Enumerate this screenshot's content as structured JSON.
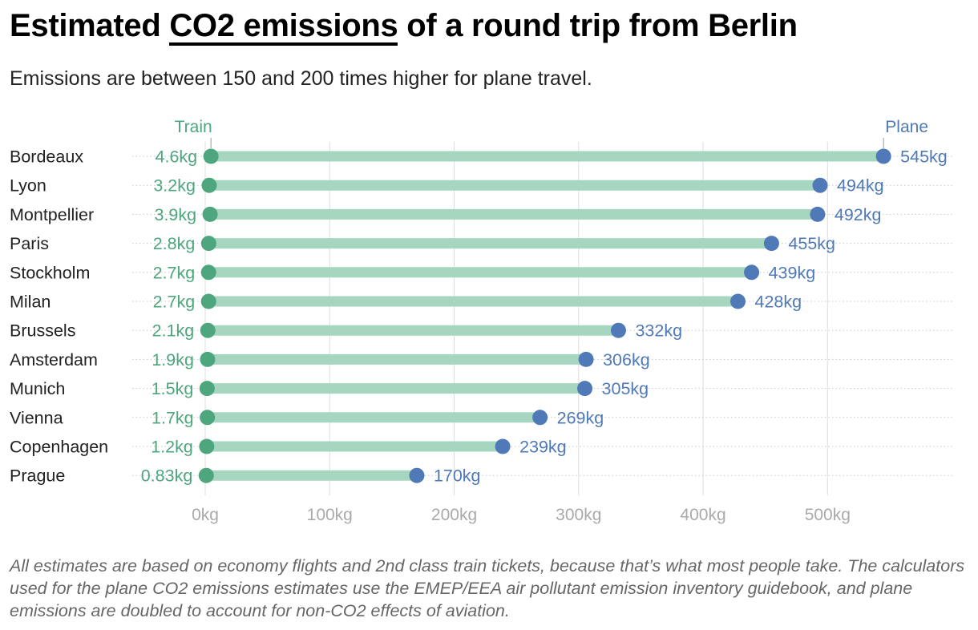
{
  "title_before": "Estimated",
  "title_highlight": "CO2 emissions",
  "title_after": "of a round trip from Berlin",
  "subtitle": "Emissions are between 150 and 200 times higher for plane travel.",
  "footnote": "All estimates are based on economy flights and 2nd class train tickets, because that’s what most people take. The calculators used for the plane CO2 emissions estimates use the EMEP/EEA air pollutant emission inventory guidebook, and plane emissions are doubled to account for non-CO2 effects of aviation.",
  "colors": {
    "train": "#4da67d",
    "plane": "#4f79b7",
    "bar": "#a6d6bf",
    "grid": "#dddddd",
    "tick": "#aaaaaa",
    "city": "#222222"
  },
  "chart_data": {
    "type": "dumbbell",
    "unit": "kg",
    "xlim": [
      0,
      600
    ],
    "xticks": [
      0,
      100,
      200,
      300,
      400,
      500
    ],
    "xtick_labels": [
      "0kg",
      "100kg",
      "200kg",
      "300kg",
      "400kg",
      "500kg"
    ],
    "grid": true,
    "categories": [
      "Bordeaux",
      "Lyon",
      "Montpellier",
      "Paris",
      "Stockholm",
      "Milan",
      "Brussels",
      "Amsterdam",
      "Munich",
      "Vienna",
      "Copenhagen",
      "Prague"
    ],
    "series": [
      {
        "name": "Train",
        "values": [
          4.6,
          3.2,
          3.9,
          2.8,
          2.7,
          2.7,
          2.1,
          1.9,
          1.5,
          1.7,
          1.2,
          0.83
        ],
        "labels": [
          "4.6kg",
          "3.2kg",
          "3.9kg",
          "2.8kg",
          "2.7kg",
          "2.7kg",
          "2.1kg",
          "1.9kg",
          "1.5kg",
          "1.7kg",
          "1.2kg",
          "0.83kg"
        ]
      },
      {
        "name": "Plane",
        "values": [
          545,
          494,
          492,
          455,
          439,
          428,
          332,
          306,
          305,
          269,
          239,
          170
        ],
        "labels": [
          "545kg",
          "494kg",
          "492kg",
          "455kg",
          "439kg",
          "428kg",
          "332kg",
          "306kg",
          "305kg",
          "269kg",
          "239kg",
          "170kg"
        ]
      }
    ]
  }
}
